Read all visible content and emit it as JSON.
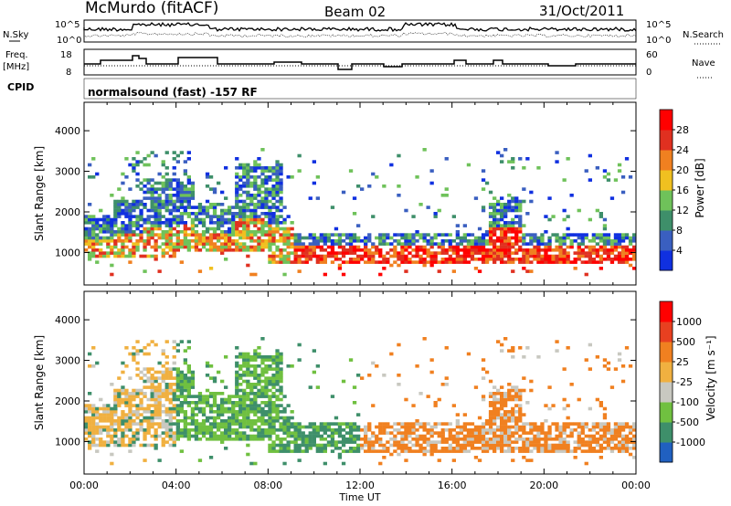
{
  "header": {
    "title": "McMurdo (fitACF)",
    "beam": "Beam 02",
    "date": "31/Oct/2011"
  },
  "noise_panel": {
    "left_label": "N.Sky",
    "right_label": "N.Search",
    "ticks_left": [
      "10^5",
      "10^0"
    ],
    "ticks_right": [
      "10^5",
      "10^0"
    ]
  },
  "freq_panel": {
    "left_label_1": "Freq.",
    "left_label_2": "[MHz]",
    "right_label": "Nave",
    "ticks_left": [
      "18",
      "8"
    ],
    "ticks_right": [
      "60",
      "0"
    ]
  },
  "cpid_panel": {
    "label": "CPID",
    "text": "normalsound (fast) -157 RF"
  },
  "chart_data": [
    {
      "type": "heatmap",
      "name": "power",
      "ylabel": "Slant Range [km]",
      "y_ticks": [
        "1000",
        "2000",
        "3000",
        "4000"
      ],
      "ylim": [
        200,
        4700
      ],
      "x_ticks": [
        "00:00",
        "04:00",
        "08:00",
        "12:00",
        "16:00",
        "20:00",
        "00:00"
      ],
      "colorbar": {
        "label": "Power [dB]",
        "ticks": [
          "4",
          "8",
          "12",
          "16",
          "20",
          "24",
          "28"
        ],
        "colors": [
          "#1030e0",
          "#3a5fc0",
          "#3e8f6a",
          "#6fc25a",
          "#f0c020",
          "#f08020",
          "#e03020",
          "#ff0000"
        ]
      }
    },
    {
      "type": "heatmap",
      "name": "velocity",
      "ylabel": "Slant Range [km]",
      "xlabel": "Time UT",
      "y_ticks": [
        "1000",
        "2000",
        "3000",
        "4000"
      ],
      "ylim": [
        200,
        4700
      ],
      "x_ticks": [
        "00:00",
        "04:00",
        "08:00",
        "12:00",
        "16:00",
        "20:00",
        "00:00"
      ],
      "colorbar": {
        "label": "Velocity [m s⁻¹]",
        "ticks": [
          "1000",
          "500",
          "25",
          "-25",
          "-100",
          "-500",
          "-1000"
        ],
        "colors": [
          "#2060c0",
          "#3e8f6a",
          "#70c040",
          "#c8c8c0",
          "#f0b040",
          "#f08020",
          "#e84020",
          "#ff0000"
        ]
      }
    }
  ]
}
